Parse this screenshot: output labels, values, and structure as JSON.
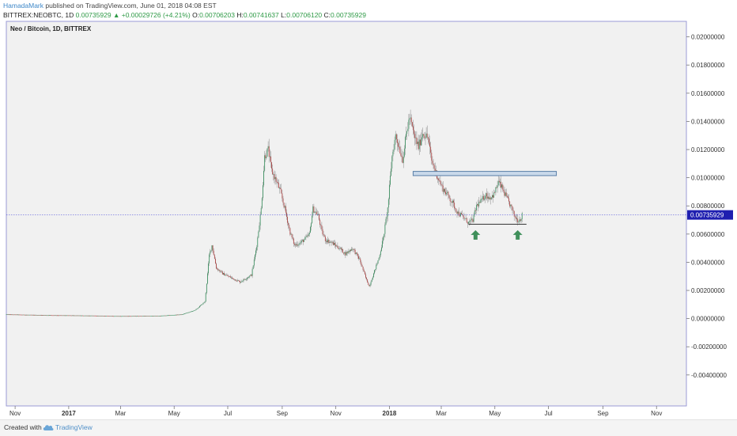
{
  "header": {
    "author": "HamadaMark",
    "published_text": "published on TradingView.com, June 01, 2018 04:08 EST",
    "symbol": "BITTREX:NEOBTC, 1D",
    "last": "0.00735929",
    "arrow": "▲",
    "change": "+0.00029726 (+4.21%)",
    "o_label": "O:",
    "o_value": "0.00706203",
    "h_label": "H:",
    "h_value": "0.00741637",
    "l_label": "L:",
    "l_value": "0.00706120",
    "c_label": "C:",
    "c_value": "0.00735929"
  },
  "footer": {
    "created_with": "Created with",
    "brand": "TradingView",
    "logo_icon": "tradingview-cloud-icon"
  },
  "colors": {
    "up": "#2e8b57",
    "down": "#a83434",
    "price_line": "#3b3bd6",
    "price_tag": "#1f1fb0",
    "zone_fill": "#c9d9ea",
    "zone_stroke": "#5a7fa8",
    "arrow": "#3f8f5a",
    "frame": "#9a9ad6"
  },
  "chart_data": {
    "type": "candlestick",
    "title": "Neo / Bitcoin, 1D, BITTREX",
    "ylim": [
      -0.0062,
      0.0211
    ],
    "yticks": [
      "0.02000000",
      "0.01800000",
      "0.01600000",
      "0.01400000",
      "0.01200000",
      "0.01000000",
      "0.00800000",
      "0.00600000",
      "0.00400000",
      "0.00200000",
      "0.00000000",
      "-0.00200000",
      "-0.00400000"
    ],
    "xticks": [
      {
        "label": "Nov",
        "date": "2016-11-01"
      },
      {
        "label": "2017",
        "date": "2017-01-01"
      },
      {
        "label": "Mar",
        "date": "2017-03-01"
      },
      {
        "label": "May",
        "date": "2017-05-01"
      },
      {
        "label": "Jul",
        "date": "2017-07-01"
      },
      {
        "label": "Sep",
        "date": "2017-09-01"
      },
      {
        "label": "Nov",
        "date": "2017-11-01"
      },
      {
        "label": "2018",
        "date": "2018-01-01"
      },
      {
        "label": "Mar",
        "date": "2018-03-01"
      },
      {
        "label": "May",
        "date": "2018-05-01"
      },
      {
        "label": "Jul",
        "date": "2018-07-01"
      },
      {
        "label": "Sep",
        "date": "2018-09-01"
      },
      {
        "label": "Nov",
        "date": "2018-11-01"
      }
    ],
    "xlim": [
      "2016-10-22",
      "2018-12-05"
    ],
    "last_price": 0.00735929,
    "last_price_label": "0.00735929",
    "series_close": [
      [
        "2016-10-22",
        0.0003
      ],
      [
        "2016-12-01",
        0.00025
      ],
      [
        "2017-01-15",
        0.00022
      ],
      [
        "2017-03-01",
        0.00018
      ],
      [
        "2017-04-15",
        0.0002
      ],
      [
        "2017-05-10",
        0.0003
      ],
      [
        "2017-05-25",
        0.0006
      ],
      [
        "2017-06-05",
        0.0012
      ],
      [
        "2017-06-10",
        0.0045
      ],
      [
        "2017-06-13",
        0.0052
      ],
      [
        "2017-06-18",
        0.0036
      ],
      [
        "2017-06-25",
        0.0032
      ],
      [
        "2017-07-05",
        0.0029
      ],
      [
        "2017-07-15",
        0.0026
      ],
      [
        "2017-07-28",
        0.0031
      ],
      [
        "2017-08-03",
        0.0052
      ],
      [
        "2017-08-08",
        0.0078
      ],
      [
        "2017-08-12",
        0.0115
      ],
      [
        "2017-08-16",
        0.012
      ],
      [
        "2017-08-20",
        0.0105
      ],
      [
        "2017-08-25",
        0.0098
      ],
      [
        "2017-08-30",
        0.009
      ],
      [
        "2017-09-04",
        0.0078
      ],
      [
        "2017-09-10",
        0.0061
      ],
      [
        "2017-09-15",
        0.0052
      ],
      [
        "2017-09-22",
        0.0054
      ],
      [
        "2017-09-28",
        0.0057
      ],
      [
        "2017-10-02",
        0.006
      ],
      [
        "2017-10-06",
        0.0078
      ],
      [
        "2017-10-12",
        0.0073
      ],
      [
        "2017-10-16",
        0.0062
      ],
      [
        "2017-10-20",
        0.0056
      ],
      [
        "2017-10-27",
        0.0054
      ],
      [
        "2017-11-05",
        0.005
      ],
      [
        "2017-11-12",
        0.0046
      ],
      [
        "2017-11-20",
        0.005
      ],
      [
        "2017-11-28",
        0.0042
      ],
      [
        "2017-12-05",
        0.0029
      ],
      [
        "2017-12-09",
        0.0023
      ],
      [
        "2017-12-13",
        0.003
      ],
      [
        "2017-12-20",
        0.0043
      ],
      [
        "2017-12-25",
        0.0057
      ],
      [
        "2017-12-30",
        0.0078
      ],
      [
        "2018-01-04",
        0.0115
      ],
      [
        "2018-01-08",
        0.013
      ],
      [
        "2018-01-12",
        0.0122
      ],
      [
        "2018-01-16",
        0.0113
      ],
      [
        "2018-01-20",
        0.013
      ],
      [
        "2018-01-24",
        0.0143
      ],
      [
        "2018-01-29",
        0.013
      ],
      [
        "2018-02-03",
        0.0122
      ],
      [
        "2018-02-08",
        0.0132
      ],
      [
        "2018-02-14",
        0.0128
      ],
      [
        "2018-02-18",
        0.0112
      ],
      [
        "2018-02-24",
        0.0102
      ],
      [
        "2018-03-02",
        0.0093
      ],
      [
        "2018-03-08",
        0.0088
      ],
      [
        "2018-03-14",
        0.0082
      ],
      [
        "2018-03-20",
        0.0075
      ],
      [
        "2018-03-26",
        0.0072
      ],
      [
        "2018-04-01",
        0.0068
      ],
      [
        "2018-04-06",
        0.007
      ],
      [
        "2018-04-10",
        0.008
      ],
      [
        "2018-04-15",
        0.0083
      ],
      [
        "2018-04-20",
        0.0088
      ],
      [
        "2018-04-25",
        0.0086
      ],
      [
        "2018-04-30",
        0.0088
      ],
      [
        "2018-05-05",
        0.0097
      ],
      [
        "2018-05-09",
        0.0093
      ],
      [
        "2018-05-14",
        0.0086
      ],
      [
        "2018-05-19",
        0.008
      ],
      [
        "2018-05-23",
        0.0073
      ],
      [
        "2018-05-27",
        0.007
      ],
      [
        "2018-05-30",
        0.00706
      ],
      [
        "2018-06-01",
        0.00736
      ]
    ],
    "annotations": [
      {
        "type": "resistance-zone",
        "x_start": "2018-01-28",
        "x_end": "2018-07-10",
        "y_low": 0.01015,
        "y_high": 0.01045
      },
      {
        "type": "support-line",
        "x_start": "2018-04-01",
        "x_end": "2018-06-06",
        "y": 0.0067
      },
      {
        "type": "up-arrow",
        "date": "2018-04-09",
        "y": 0.006
      },
      {
        "type": "up-arrow",
        "date": "2018-05-27",
        "y": 0.006
      }
    ]
  }
}
